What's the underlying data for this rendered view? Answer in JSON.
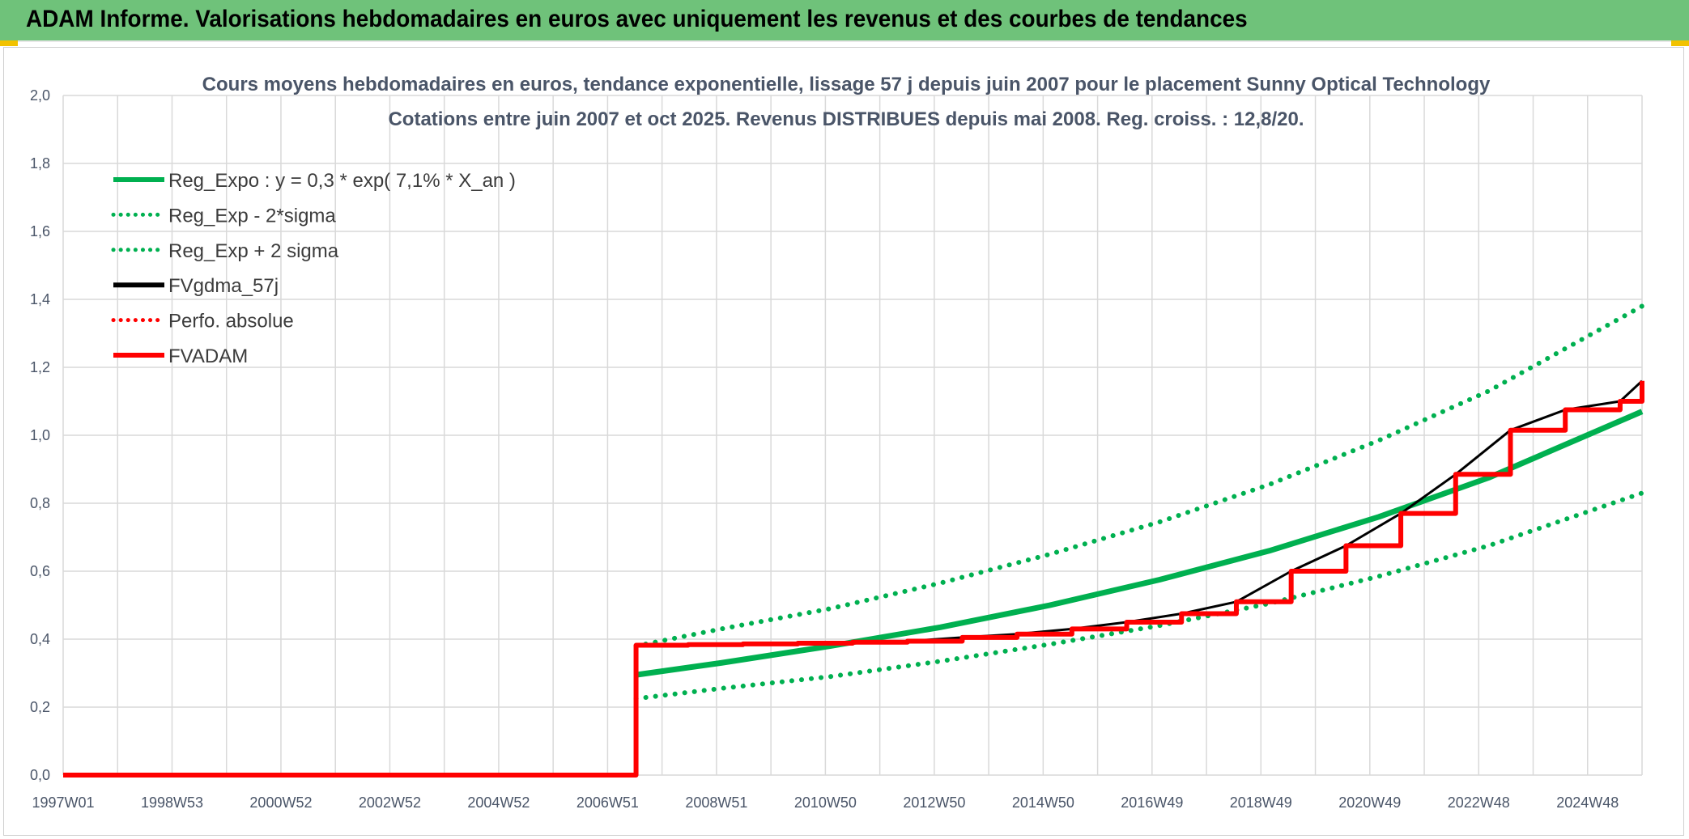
{
  "header": {
    "title": "ADAM Informe. Valorisations hebdomadaires en euros avec uniquement les revenus et des courbes de tendances"
  },
  "colors": {
    "header_bg": "#6fc27a",
    "accent_yellow": "#f2c200",
    "trend_green": "#00b050",
    "price_black": "#000000",
    "adam_red": "#ff0000",
    "grid": "#d9d9d9"
  },
  "chart_data": {
    "type": "line",
    "title_line1": "Cours moyens hebdomadaires en euros, tendance exponentielle, lissage 57 j depuis juin 2007 pour le placement Sunny Optical Technology",
    "title_line2": "Cotations entre juin 2007 et oct 2025. Revenus DISTRIBUES depuis mai 2008. Reg. croiss. : 12,8/20.",
    "xlabel": "",
    "ylabel": "",
    "x_tick_labels": [
      "1997W01",
      "1998W53",
      "2000W52",
      "2002W52",
      "2004W52",
      "2006W51",
      "2008W51",
      "2010W50",
      "2012W50",
      "2014W50",
      "2016W49",
      "2018W49",
      "2020W49",
      "2022W48",
      "2024W48"
    ],
    "x_range_years": [
      1997.0,
      2025.8
    ],
    "ylim": [
      0,
      2.0
    ],
    "y_tick_labels": [
      "0,0",
      "0,2",
      "0,4",
      "0,6",
      "0,8",
      "1,0",
      "1,2",
      "1,4",
      "1,6",
      "1,8",
      "2,0"
    ],
    "grid": true,
    "legend_position": "top-left",
    "legend": [
      {
        "label": "Reg_Expo : y = 0,3 * exp( 7,1% *  X_an )",
        "color": "#00b050",
        "style": "solid"
      },
      {
        "label": "Reg_Exp - 2*sigma",
        "color": "#00b050",
        "style": "dotted"
      },
      {
        "label": "Reg_Exp + 2 sigma",
        "color": "#00b050",
        "style": "dotted"
      },
      {
        "label": "FVgdma_57j",
        "color": "#000000",
        "style": "solid"
      },
      {
        "label": "Perfo. absolue",
        "color": "#ff0000",
        "style": "dotted"
      },
      {
        "label": "FVADAM",
        "color": "#ff0000",
        "style": "solid"
      }
    ],
    "series": [
      {
        "name": "Reg_Expo : y = 0,3 * exp( 7,1% *  X_an )",
        "x": [
          2007.45,
          2009,
          2011,
          2013,
          2015,
          2017,
          2019,
          2021,
          2023,
          2025.8
        ],
        "values": [
          0.295,
          0.33,
          0.38,
          0.435,
          0.5,
          0.575,
          0.66,
          0.76,
          0.875,
          1.07
        ]
      },
      {
        "name": "Reg_Exp - 2*sigma",
        "x": [
          2007.45,
          2009,
          2011,
          2013,
          2015,
          2017,
          2019,
          2021,
          2023,
          2025.8
        ],
        "values": [
          0.225,
          0.255,
          0.29,
          0.335,
          0.385,
          0.44,
          0.505,
          0.585,
          0.675,
          0.83
        ]
      },
      {
        "name": "Reg_Exp + 2 sigma",
        "x": [
          2007.45,
          2009,
          2011,
          2013,
          2015,
          2017,
          2019,
          2021,
          2023,
          2025.8
        ],
        "values": [
          0.38,
          0.43,
          0.49,
          0.565,
          0.65,
          0.745,
          0.855,
          0.985,
          1.13,
          1.38
        ]
      },
      {
        "name": "FVgdma_57j",
        "x": [
          1997.0,
          2007.45,
          2007.45,
          2008.4,
          2009.4,
          2010.4,
          2011.4,
          2012.4,
          2013.4,
          2014.4,
          2015.4,
          2016.4,
          2017.4,
          2018.4,
          2019.4,
          2020.4,
          2021.4,
          2022.4,
          2023.4,
          2024.4,
          2025.4,
          2025.8
        ],
        "values": [
          0.0,
          0.0,
          0.382,
          0.384,
          0.386,
          0.388,
          0.391,
          0.394,
          0.405,
          0.415,
          0.43,
          0.45,
          0.475,
          0.51,
          0.6,
          0.675,
          0.77,
          0.885,
          1.015,
          1.075,
          1.1,
          1.16
        ]
      },
      {
        "name": "FVADAM",
        "x": [
          1997.0,
          2007.45,
          2007.45,
          2008.4,
          2009.4,
          2010.4,
          2011.4,
          2012.4,
          2013.4,
          2014.4,
          2015.4,
          2016.4,
          2017.4,
          2018.4,
          2019.4,
          2020.4,
          2021.4,
          2022.4,
          2023.4,
          2024.4,
          2025.4,
          2025.8
        ],
        "values": [
          0.0,
          0.0,
          0.382,
          0.384,
          0.386,
          0.388,
          0.391,
          0.394,
          0.405,
          0.415,
          0.43,
          0.45,
          0.475,
          0.51,
          0.6,
          0.675,
          0.77,
          0.885,
          1.015,
          1.075,
          1.1,
          1.16
        ]
      }
    ]
  }
}
